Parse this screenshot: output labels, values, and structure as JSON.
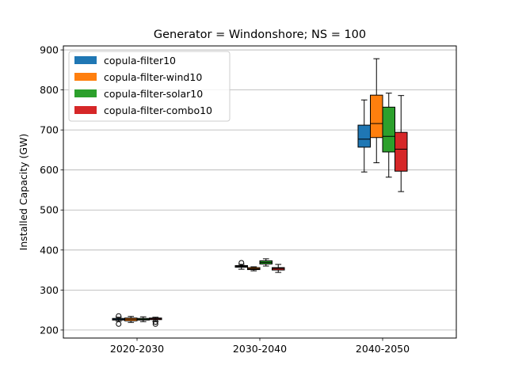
{
  "chart_data": {
    "type": "box",
    "title": "Generator = Windonshore; NS = 100",
    "xlabel": "",
    "ylabel": "Installed Capacity (GW)",
    "ylim": [
      180,
      910
    ],
    "yticks": [
      200,
      300,
      400,
      500,
      600,
      700,
      800,
      900
    ],
    "grid": "horizontal",
    "legend_position": "top-left",
    "categories": [
      "2020-2030",
      "2030-2040",
      "2040-2050"
    ],
    "series": [
      {
        "name": "copula-filter10",
        "color": "#1f77b4",
        "boxes": [
          {
            "min": 222,
            "q1": 225,
            "median": 227,
            "q3": 229,
            "max": 232,
            "fliers": [
              215,
              235
            ]
          },
          {
            "min": 352,
            "q1": 357,
            "median": 359,
            "q3": 361,
            "max": 364,
            "fliers": [
              368
            ]
          },
          {
            "min": 595,
            "q1": 657,
            "median": 677,
            "q3": 712,
            "max": 775,
            "fliers": []
          }
        ]
      },
      {
        "name": "copula-filter-wind10",
        "color": "#ff7f0e",
        "boxes": [
          {
            "min": 219,
            "q1": 223,
            "median": 227,
            "q3": 230,
            "max": 234,
            "fliers": []
          },
          {
            "min": 348,
            "q1": 351,
            "median": 353,
            "q3": 356,
            "max": 358,
            "fliers": []
          },
          {
            "min": 618,
            "q1": 681,
            "median": 716,
            "q3": 787,
            "max": 878,
            "fliers": []
          }
        ]
      },
      {
        "name": "copula-filter-solar10",
        "color": "#2ca02c",
        "boxes": [
          {
            "min": 221,
            "q1": 225,
            "median": 227,
            "q3": 229,
            "max": 233,
            "fliers": []
          },
          {
            "min": 360,
            "q1": 365,
            "median": 369,
            "q3": 373,
            "max": 378,
            "fliers": []
          },
          {
            "min": 582,
            "q1": 645,
            "median": 684,
            "q3": 757,
            "max": 792,
            "fliers": []
          }
        ]
      },
      {
        "name": "copula-filter-combo10",
        "color": "#d62728",
        "boxes": [
          {
            "min": 222,
            "q1": 226,
            "median": 228,
            "q3": 230,
            "max": 232,
            "fliers": [
              215,
              220
            ]
          },
          {
            "min": 344,
            "q1": 350,
            "median": 354,
            "q3": 356,
            "max": 364,
            "fliers": []
          },
          {
            "min": 546,
            "q1": 597,
            "median": 652,
            "q3": 694,
            "max": 786,
            "fliers": []
          }
        ]
      }
    ]
  }
}
